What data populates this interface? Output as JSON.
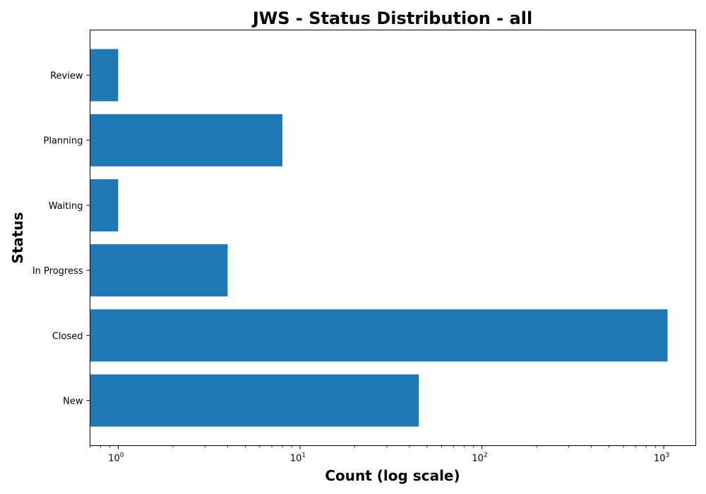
{
  "chart_data": {
    "type": "bar",
    "orientation": "horizontal",
    "title": "JWS - Status Distribution - all",
    "xlabel": "Count (log scale)",
    "ylabel": "Status",
    "x_scale": "log",
    "xlim": [
      0.7,
      1500
    ],
    "x_ticks": [
      {
        "value": 1,
        "base": "10",
        "exp": "0"
      },
      {
        "value": 10,
        "base": "10",
        "exp": "1"
      },
      {
        "value": 100,
        "base": "10",
        "exp": "2"
      },
      {
        "value": 1000,
        "base": "10",
        "exp": "3"
      }
    ],
    "categories": [
      "New",
      "Closed",
      "In Progress",
      "Waiting",
      "Planning",
      "Review"
    ],
    "values": [
      45,
      1050,
      4,
      1,
      8,
      1
    ],
    "bar_color": "#1f77b4",
    "grid": false,
    "legend": "none"
  }
}
